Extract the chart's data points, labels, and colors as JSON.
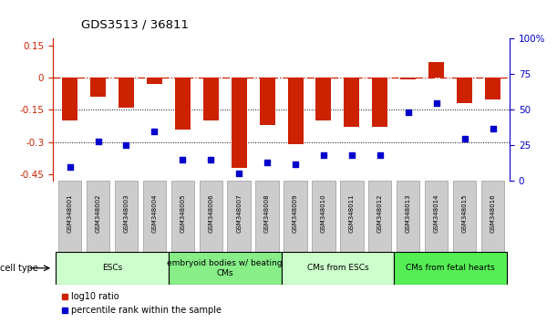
{
  "title": "GDS3513 / 36811",
  "samples": [
    "GSM348001",
    "GSM348002",
    "GSM348003",
    "GSM348004",
    "GSM348005",
    "GSM348006",
    "GSM348007",
    "GSM348008",
    "GSM348009",
    "GSM348010",
    "GSM348011",
    "GSM348012",
    "GSM348013",
    "GSM348014",
    "GSM348015",
    "GSM348016"
  ],
  "log10_ratio": [
    -0.2,
    -0.09,
    -0.14,
    -0.03,
    -0.24,
    -0.2,
    -0.42,
    -0.22,
    -0.31,
    -0.2,
    -0.23,
    -0.23,
    -0.01,
    0.07,
    -0.12,
    -0.1
  ],
  "percentile_rank": [
    10,
    28,
    25,
    35,
    15,
    15,
    5,
    13,
    12,
    18,
    18,
    18,
    48,
    55,
    30,
    37
  ],
  "cell_type_groups": [
    {
      "label": "ESCs",
      "start": 0,
      "end": 3,
      "color": "#ccffcc"
    },
    {
      "label": "embryoid bodies w/ beating\nCMs",
      "start": 4,
      "end": 7,
      "color": "#88ee88"
    },
    {
      "label": "CMs from ESCs",
      "start": 8,
      "end": 11,
      "color": "#ccffcc"
    },
    {
      "label": "CMs from fetal hearts",
      "start": 12,
      "end": 15,
      "color": "#55ee55"
    }
  ],
  "bar_color": "#cc2200",
  "dot_color": "#0000cc",
  "ylim_left": [
    -0.48,
    0.18
  ],
  "ylim_right": [
    0,
    100
  ],
  "yticks_left": [
    0.15,
    0,
    -0.15,
    -0.3,
    -0.45
  ],
  "yticks_right": [
    100,
    75,
    50,
    25,
    0
  ],
  "legend_labels": [
    "log10 ratio",
    "percentile rank within the sample"
  ],
  "sample_box_color": "#cccccc",
  "sample_box_edge": "#999999"
}
